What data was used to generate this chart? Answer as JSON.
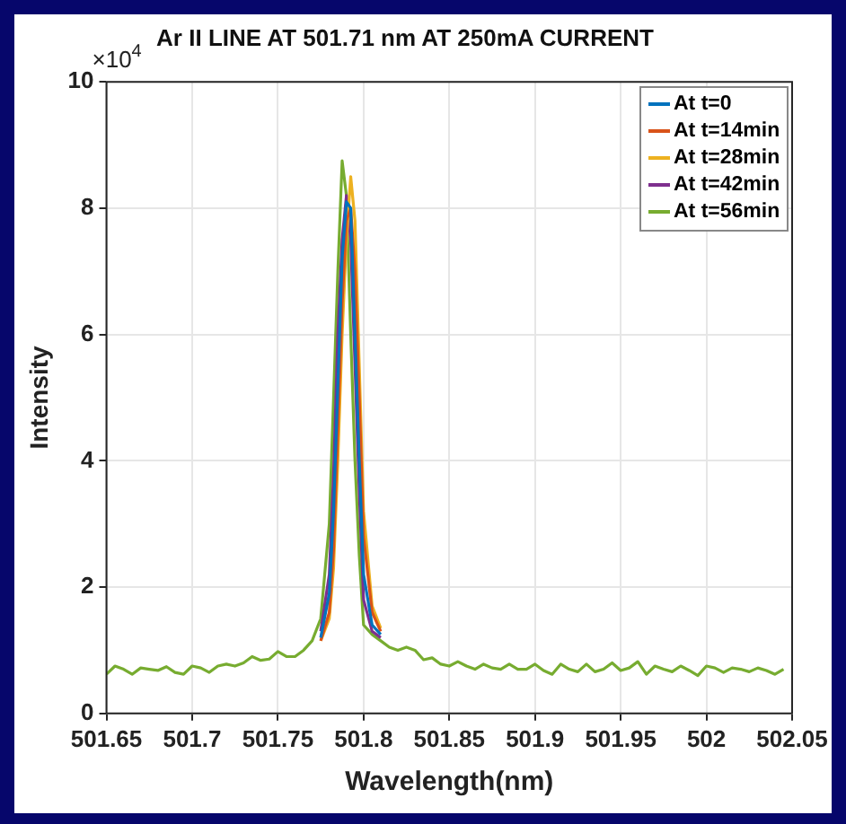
{
  "chart_data": {
    "type": "line",
    "title": "Ar II LINE AT 501.71 nm AT 250mA CURRENT",
    "xlabel": "Wavelength(nm)",
    "ylabel": "Intensity",
    "annotations": [
      "×10$^{4}$"
    ],
    "x": [
      501.65,
      501.655,
      501.66,
      501.665,
      501.67,
      501.675,
      501.68,
      501.685,
      501.69,
      501.695,
      501.7,
      501.705,
      501.71,
      501.715,
      501.72,
      501.725,
      501.73,
      501.735,
      501.74,
      501.745,
      501.75,
      501.755,
      501.76,
      501.765,
      501.77,
      501.775,
      501.78,
      501.7825,
      501.785,
      501.7875,
      501.79,
      501.7925,
      501.795,
      501.7975,
      501.8,
      501.805,
      501.81,
      501.815,
      501.82,
      501.825,
      501.83,
      501.835,
      501.84,
      501.845,
      501.85,
      501.855,
      501.86,
      501.865,
      501.87,
      501.875,
      501.88,
      501.885,
      501.89,
      501.895,
      501.9,
      501.905,
      501.91,
      501.915,
      501.92,
      501.925,
      501.93,
      501.935,
      501.94,
      501.945,
      501.95,
      501.955,
      501.96,
      501.965,
      501.97,
      501.975,
      501.98,
      501.985,
      501.99,
      501.995,
      502,
      502.005,
      502.01,
      502.015,
      502.02,
      502.025,
      502.03,
      502.035,
      502.04,
      502.045
    ],
    "series": [
      {
        "name": "At t=0",
        "color": "#0072bd",
        "values": [
          null,
          null,
          null,
          null,
          null,
          null,
          null,
          null,
          null,
          null,
          null,
          null,
          null,
          null,
          null,
          null,
          null,
          null,
          null,
          null,
          null,
          null,
          null,
          null,
          null,
          1.2,
          1.9,
          3.2,
          5.2,
          7.2,
          8.1,
          8.0,
          6.0,
          4.0,
          2.2,
          1.4,
          1.25,
          null,
          null,
          null,
          null,
          null,
          null,
          null,
          null,
          null,
          null,
          null,
          null,
          null,
          null,
          null,
          null,
          null,
          null,
          null,
          null,
          null,
          null,
          null,
          null,
          null,
          null,
          null,
          null,
          null,
          null,
          null,
          null,
          null,
          null,
          null,
          null,
          null,
          null,
          null,
          null,
          null,
          null,
          null,
          null,
          null,
          null,
          null
        ]
      },
      {
        "name": "At t=14min",
        "color": "#d95319",
        "values": [
          null,
          null,
          null,
          null,
          null,
          null,
          null,
          null,
          null,
          null,
          null,
          null,
          null,
          null,
          null,
          null,
          null,
          null,
          null,
          null,
          null,
          null,
          null,
          null,
          null,
          1.15,
          1.6,
          2.6,
          4.5,
          6.5,
          7.8,
          8.0,
          7.0,
          5.0,
          2.8,
          1.6,
          1.3,
          null,
          null,
          null,
          null,
          null,
          null,
          null,
          null,
          null,
          null,
          null,
          null,
          null,
          null,
          null,
          null,
          null,
          null,
          null,
          null,
          null,
          null,
          null,
          null,
          null,
          null,
          null,
          null,
          null,
          null,
          null,
          null,
          null,
          null,
          null,
          null,
          null,
          null,
          null,
          null,
          null,
          null,
          null,
          null,
          null,
          null,
          null
        ]
      },
      {
        "name": "At t=28min",
        "color": "#edb120",
        "values": [
          null,
          null,
          null,
          null,
          null,
          null,
          null,
          null,
          null,
          null,
          null,
          null,
          null,
          null,
          null,
          null,
          null,
          null,
          null,
          null,
          null,
          null,
          null,
          null,
          null,
          1.15,
          1.5,
          2.3,
          4.0,
          6.0,
          7.5,
          8.5,
          7.8,
          5.5,
          3.2,
          1.7,
          1.35,
          null,
          null,
          null,
          null,
          null,
          null,
          null,
          null,
          null,
          null,
          null,
          null,
          null,
          null,
          null,
          null,
          null,
          null,
          null,
          null,
          null,
          null,
          null,
          null,
          null,
          null,
          null,
          null,
          null,
          null,
          null,
          null,
          null,
          null,
          null,
          null,
          null,
          null,
          null,
          null,
          null,
          null,
          null,
          null,
          null,
          null,
          null
        ]
      },
      {
        "name": "At t=42min",
        "color": "#7e2f8e",
        "values": [
          null,
          null,
          null,
          null,
          null,
          null,
          null,
          null,
          null,
          null,
          null,
          null,
          null,
          null,
          null,
          null,
          null,
          null,
          null,
          null,
          null,
          null,
          null,
          null,
          null,
          1.3,
          2.2,
          3.8,
          6.0,
          7.5,
          8.2,
          7.5,
          5.5,
          3.5,
          1.8,
          1.3,
          1.2,
          null,
          null,
          null,
          null,
          null,
          null,
          null,
          null,
          null,
          null,
          null,
          null,
          null,
          null,
          null,
          null,
          null,
          null,
          null,
          null,
          null,
          null,
          null,
          null,
          null,
          null,
          null,
          null,
          null,
          null,
          null,
          null,
          null,
          null,
          null,
          null,
          null,
          null,
          null,
          null,
          null,
          null,
          null,
          null,
          null,
          null,
          null
        ]
      },
      {
        "name": "At t=56min",
        "color": "#77ac30",
        "values": [
          0.62,
          0.75,
          0.7,
          0.62,
          0.72,
          0.7,
          0.68,
          0.74,
          0.65,
          0.62,
          0.75,
          0.72,
          0.65,
          0.75,
          0.78,
          0.75,
          0.8,
          0.9,
          0.84,
          0.86,
          0.98,
          0.9,
          0.9,
          1.0,
          1.15,
          1.5,
          3.0,
          5.0,
          7.0,
          8.75,
          8.2,
          6.0,
          4.0,
          2.5,
          1.4,
          1.25,
          1.15,
          1.05,
          1.0,
          1.05,
          1.0,
          0.85,
          0.88,
          0.78,
          0.75,
          0.82,
          0.75,
          0.7,
          0.78,
          0.72,
          0.7,
          0.78,
          0.7,
          0.7,
          0.78,
          0.68,
          0.62,
          0.78,
          0.7,
          0.66,
          0.78,
          0.66,
          0.7,
          0.8,
          0.68,
          0.72,
          0.82,
          0.62,
          0.75,
          0.7,
          0.66,
          0.75,
          0.68,
          0.6,
          0.75,
          0.72,
          0.65,
          0.72,
          0.7,
          0.66,
          0.72,
          0.68,
          0.62,
          0.7
        ]
      }
    ],
    "xlim": [
      501.65,
      502.05
    ],
    "xticks": [
      501.65,
      501.7,
      501.75,
      501.8,
      501.85,
      501.9,
      501.95,
      502,
      502.05
    ],
    "ylim": [
      0,
      10
    ],
    "yticks": [
      0,
      2,
      4,
      6,
      8,
      10
    ],
    "grid": true,
    "legend": "top right",
    "marker": "none",
    "line_style": "solid"
  }
}
